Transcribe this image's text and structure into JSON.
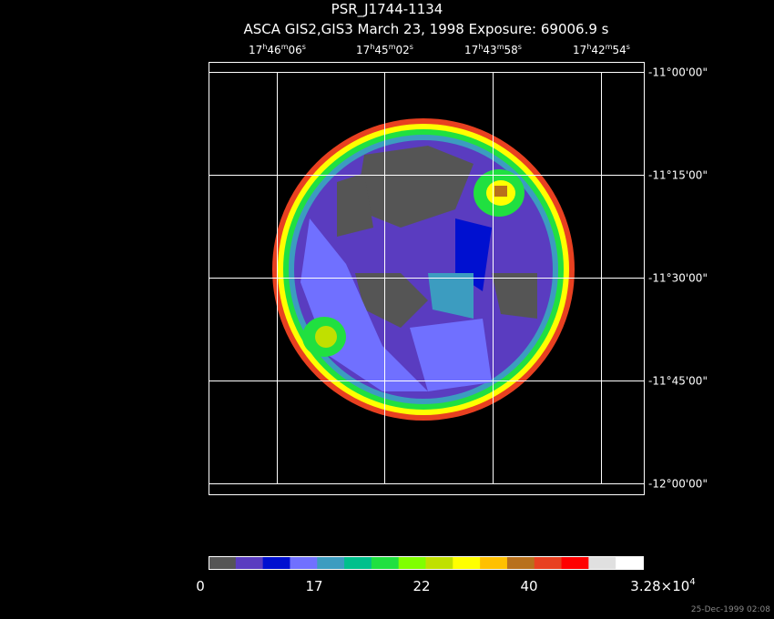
{
  "header": {
    "title": "PSR_J1744-1134",
    "subtitle": "ASCA GIS2,GIS3 March 23, 1998 Exposure: 69006.9 s"
  },
  "ra_labels": [
    [
      "17",
      "h",
      "46",
      "m",
      "06",
      "s"
    ],
    [
      "17",
      "h",
      "45",
      "m",
      "02",
      "s"
    ],
    [
      "17",
      "h",
      "43",
      "m",
      "58",
      "s"
    ],
    [
      "17",
      "h",
      "42",
      "m",
      "54",
      "s"
    ]
  ],
  "dec_labels": [
    "-11°00'00\"",
    "-11°15'00\"",
    "-11°30'00\"",
    "-11°45'00\"",
    "-12°00'00\""
  ],
  "colorbar": {
    "colors": [
      "#555555",
      "#5a3cc0",
      "#0010d0",
      "#7070ff",
      "#3c9cc0",
      "#00c08c",
      "#20e040",
      "#80ff00",
      "#c0e000",
      "#ffff00",
      "#ffc000",
      "#b8701c",
      "#e84020",
      "#ff0000",
      "#e0e0e0",
      "#ffffff"
    ],
    "labels": [
      "0",
      "17",
      "22",
      "40"
    ],
    "max_label": [
      "3.28×10",
      "4"
    ]
  },
  "timestamp": "25-Dec-1999 02:08"
}
